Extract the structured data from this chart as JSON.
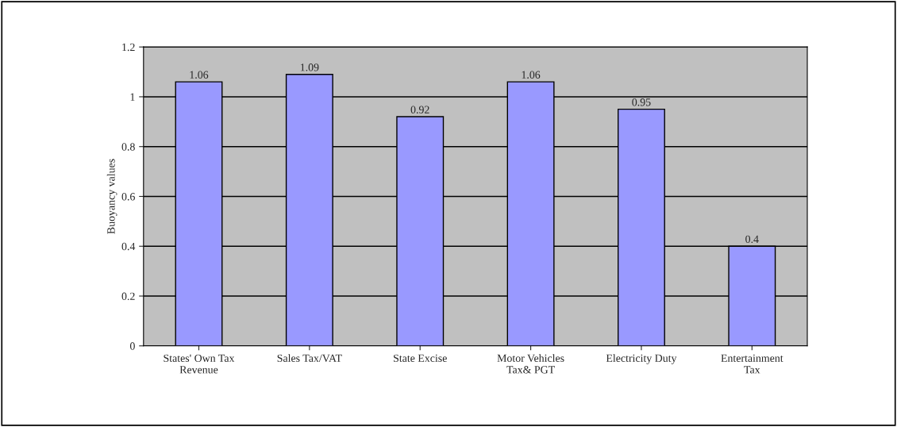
{
  "chart_data": {
    "type": "bar",
    "ylabel": "Buoyancy values",
    "categories": [
      "States' Own Tax\nRevenue",
      "Sales Tax/VAT",
      "State Excise",
      "Motor Vehicles\nTax& PGT",
      "Electricity Duty",
      "Entertainment\nTax"
    ],
    "values": [
      1.06,
      1.09,
      0.92,
      1.06,
      0.95,
      0.4
    ],
    "color": "#9999ff",
    "ylim": [
      0,
      1.2
    ],
    "yticks": [
      0,
      0.2,
      0.4,
      0.6,
      0.8,
      1,
      1.2
    ],
    "grid": "y",
    "data_labels": true
  }
}
